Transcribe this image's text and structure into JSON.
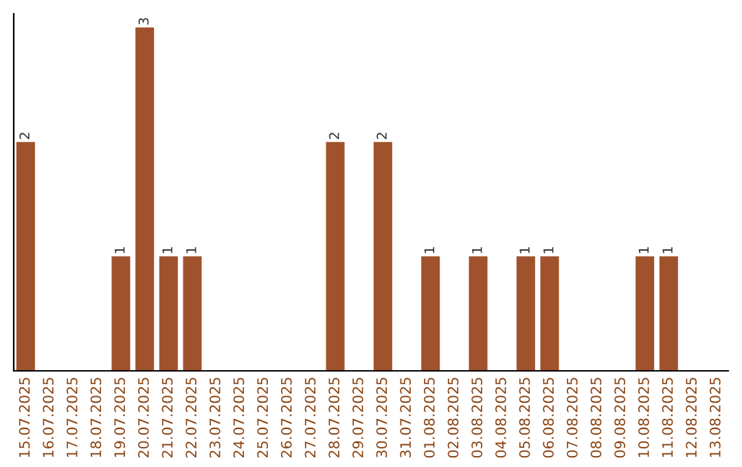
{
  "chart_data": {
    "type": "bar",
    "categories": [
      "15.07.2025",
      "16.07.2025",
      "17.07.2025",
      "18.07.2025",
      "19.07.2025",
      "20.07.2025",
      "21.07.2025",
      "22.07.2025",
      "23.07.2025",
      "24.07.2025",
      "25.07.2025",
      "26.07.2025",
      "27.07.2025",
      "28.07.2025",
      "29.07.2025",
      "30.07.2025",
      "31.07.2025",
      "01.08.2025",
      "02.08.2025",
      "03.08.2025",
      "04.08.2025",
      "05.08.2025",
      "06.08.2025",
      "07.08.2025",
      "08.08.2025",
      "09.08.2025",
      "10.08.2025",
      "11.08.2025",
      "12.08.2025",
      "13.08.2025"
    ],
    "values": [
      2,
      0,
      0,
      0,
      1,
      3,
      1,
      1,
      0,
      0,
      0,
      0,
      0,
      2,
      0,
      2,
      0,
      1,
      0,
      1,
      0,
      1,
      1,
      0,
      0,
      0,
      1,
      1,
      0,
      0
    ],
    "value_labels": [
      "2",
      null,
      null,
      null,
      "1",
      "3",
      "1",
      "1",
      null,
      null,
      null,
      null,
      null,
      "2",
      null,
      "2",
      null,
      "1",
      null,
      "1",
      null,
      "1",
      "1",
      null,
      null,
      null,
      "1",
      "1",
      null,
      null
    ],
    "color": "#a0522d",
    "ylim": [
      0,
      3.12
    ],
    "tick_labels": "x",
    "grid": false,
    "legend": false
  }
}
